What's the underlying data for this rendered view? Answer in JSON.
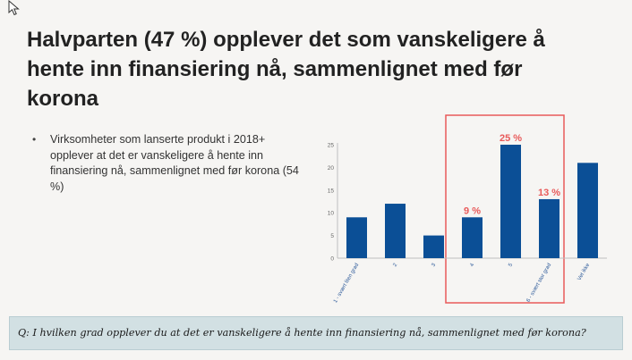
{
  "slide": {
    "title": "Halvparten (47 %) opplever det som vanskeligere å hente inn finansiering nå, sammenlignet med før korona",
    "bullets": [
      "Virksomheter som lanserte produkt i 2018+ opplever at det er vanskeligere å hente inn finansiering nå, sammenlignet med før korona (54 %)"
    ],
    "question": "Q: I hvilken grad opplever du at det er vanskeligere å hente inn finansiering nå, sammenlignet med før korona?"
  },
  "colors": {
    "bar": "#0b4f96",
    "highlight": "#e85a5a",
    "axis": "#bfbfbf",
    "question_bg": "#d2e0e3"
  },
  "chart_data": {
    "type": "bar",
    "categories": [
      "1 - svært liten grad",
      "2",
      "3",
      "4",
      "5",
      "6 - svært stor grad",
      "Vet ikke"
    ],
    "values": [
      9,
      12,
      5,
      9,
      25,
      13,
      21
    ],
    "data_labels": [
      null,
      null,
      null,
      "9 %",
      "25 %",
      "13 %",
      null
    ],
    "highlighted_categories": [
      "4",
      "5",
      "6 - svært stor grad"
    ],
    "ylim": [
      0,
      25
    ],
    "yticks": [
      0,
      5,
      10,
      15,
      20,
      25
    ],
    "grid": false,
    "title": "",
    "xlabel": "",
    "ylabel": ""
  }
}
